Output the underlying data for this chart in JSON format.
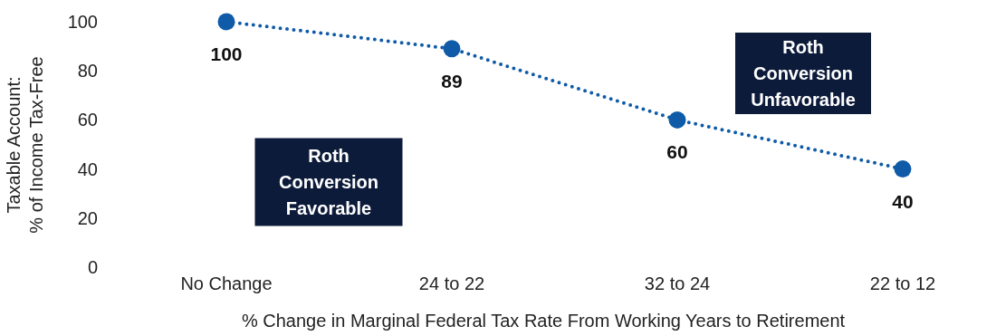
{
  "chart_data": {
    "type": "line",
    "categories": [
      "No Change",
      "24 to 22",
      "32 to 24",
      "22 to 12"
    ],
    "series": [
      {
        "color": "#0f5ba7",
        "values": [
          100,
          89,
          60,
          40
        ]
      }
    ],
    "xlabel": "% Change in Marginal Federal Tax Rate From Working Years to Retirement",
    "ylabel": "Taxable Account:\n% of Income Tax-Free",
    "ylim": [
      0,
      100
    ],
    "yticks": [
      0,
      20,
      40,
      60,
      80,
      100
    ],
    "grid": false,
    "marker": "circle",
    "line_style": "dotted",
    "data_labels": true,
    "annotations": [
      "Roth\nConversion\nFavorable",
      "Roth\nConversion\nUnfavorable"
    ]
  }
}
